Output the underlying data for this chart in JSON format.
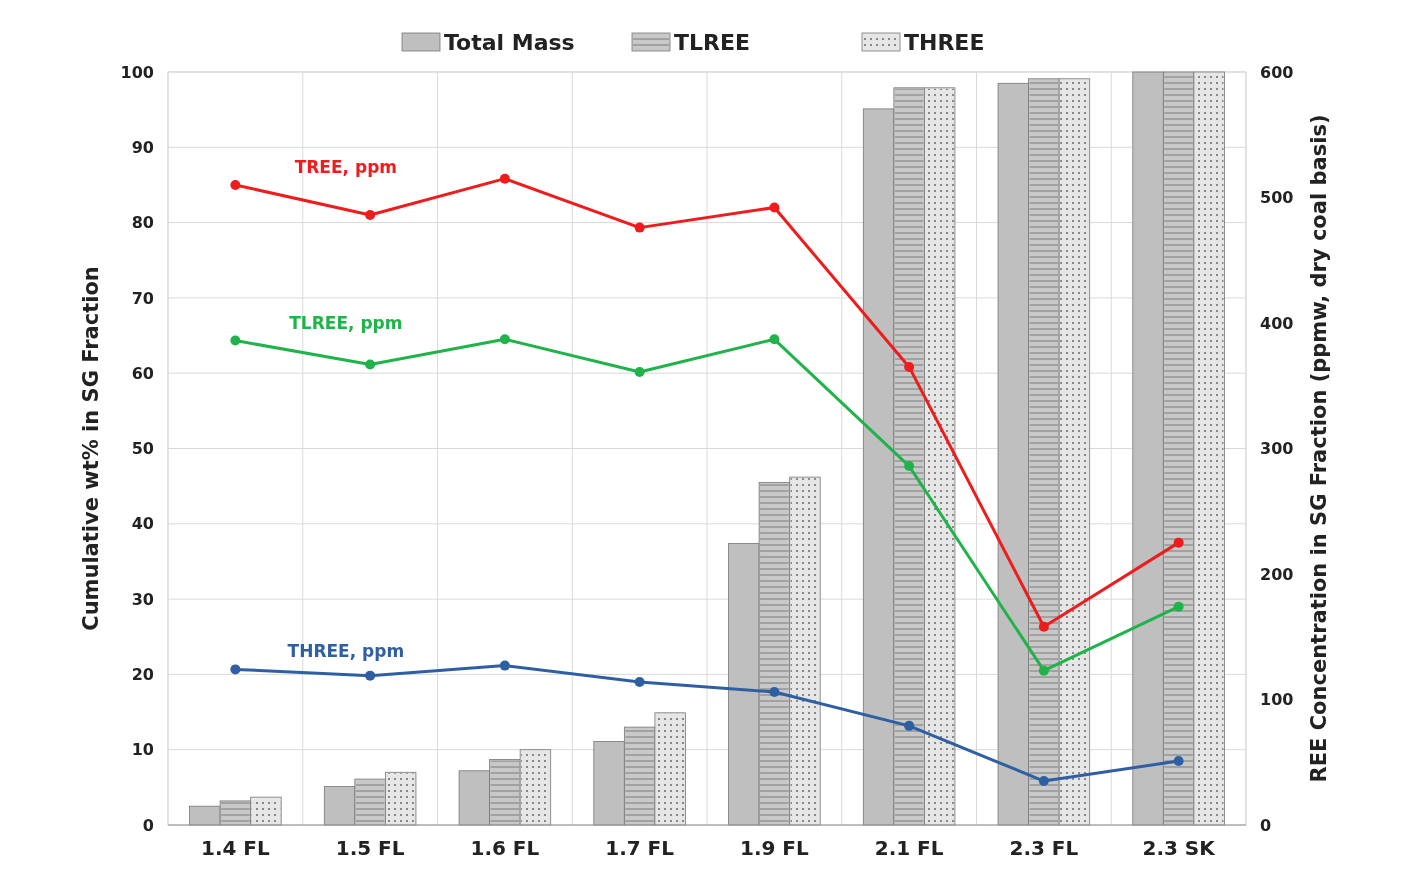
{
  "chart_data": {
    "type": "bar",
    "ylabel": "Cumulative wt% in SG Fraction",
    "y2label": "REE Concentration in SG Fraction (ppmw, dry coal basis)",
    "categories": [
      "1.4 FL",
      "1.5 FL",
      "1.6 FL",
      "1.7 FL",
      "1.9 FL",
      "2.1 FL",
      "2.3 FL",
      "2.3 SK"
    ],
    "series": [
      {
        "name": "Total Mass",
        "color": "#bfbfbf",
        "values": [
          2.5,
          5.1,
          7.2,
          11.1,
          37.4,
          95.1,
          98.5,
          100
        ]
      },
      {
        "name": "TLREE",
        "color": "#c8c8c8",
        "values": [
          3.2,
          6.1,
          8.7,
          13.0,
          45.5,
          97.9,
          99.1,
          100
        ]
      },
      {
        "name": "THREE",
        "color": "#e6e6e6",
        "values": [
          3.7,
          7.0,
          10.0,
          14.9,
          46.2,
          97.9,
          99.1,
          100
        ]
      },
      {
        "name": "TREE, ppm",
        "type": "line",
        "axis": "y2",
        "color": "#ee1c1c",
        "values": [
          510,
          486,
          515,
          476,
          492,
          365,
          158,
          225
        ]
      },
      {
        "name": "TLREE, ppm",
        "type": "line",
        "axis": "y2",
        "color": "#1fb34a",
        "values": [
          386,
          367,
          387,
          361,
          387,
          286,
          123,
          174
        ]
      },
      {
        "name": "THREE, ppm",
        "type": "line",
        "axis": "y2",
        "color": "#2e5fa3",
        "values": [
          124,
          119,
          127,
          114,
          106,
          79,
          35,
          51
        ]
      }
    ],
    "ylim": [
      0,
      100
    ],
    "yticks": [
      0,
      10,
      20,
      30,
      40,
      50,
      60,
      70,
      80,
      90,
      100
    ],
    "y2lim": [
      0,
      600
    ],
    "y2ticks": [
      0,
      100,
      200,
      300,
      400,
      500,
      600
    ],
    "grid": true,
    "legend": "top",
    "marker": "circle"
  }
}
